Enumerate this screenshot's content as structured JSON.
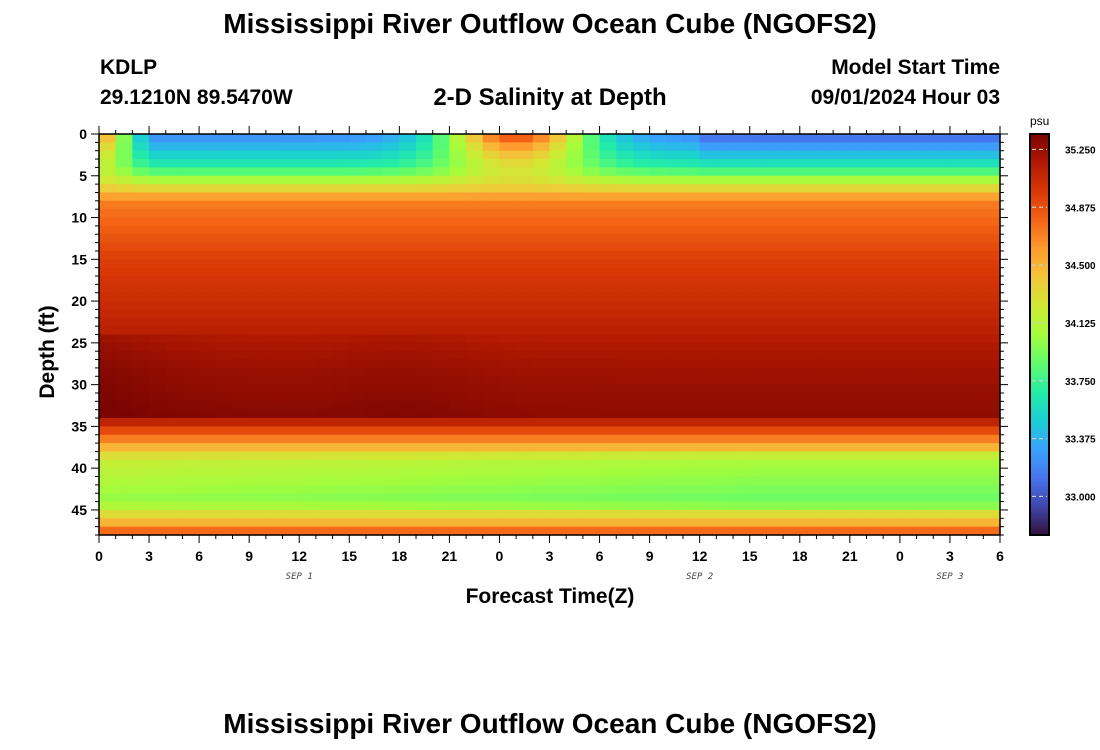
{
  "header": {
    "title": "Mississippi River Outflow Ocean Cube (NGOFS2)",
    "station": "KDLP",
    "coordinates": "29.1210N  89.5470W",
    "subtitle": "2-D Salinity at Depth",
    "start_label": "Model Start Time",
    "start_value": "09/01/2024 Hour 03"
  },
  "footer": {
    "title": "Mississippi River Outflow Ocean Cube (NGOFS2)"
  },
  "chart_data": {
    "type": "heatmap",
    "title": "2-D Salinity at Depth",
    "xlabel": "Forecast Time(Z)",
    "ylabel": "Depth (ft)",
    "x_range_hours": [
      0,
      54
    ],
    "y_range_ft": [
      0,
      48
    ],
    "x_tick_labels": [
      "0",
      "3",
      "6",
      "9",
      "12",
      "15",
      "18",
      "21",
      "0",
      "3",
      "6",
      "9",
      "12",
      "15",
      "18",
      "21",
      "0",
      "3",
      "6"
    ],
    "y_ticks": [
      "0",
      "5",
      "10",
      "15",
      "20",
      "25",
      "30",
      "35",
      "40",
      "45"
    ],
    "date_labels": [
      {
        "label": "SEP 1",
        "hour": 12
      },
      {
        "label": "SEP 2",
        "hour": 36
      },
      {
        "label": "SEP 3",
        "hour": 51
      }
    ],
    "colorbar": {
      "unit": "psu",
      "min": 32.75,
      "max": 35.35,
      "ticks": [
        "35.250",
        "34.875",
        "34.500",
        "34.125",
        "33.750",
        "33.375",
        "33.000"
      ],
      "colors": [
        "#30123b",
        "#4145ab",
        "#4675ed",
        "#39a2fc",
        "#1bcfd4",
        "#24eca6",
        "#61fc6c",
        "#a4fc3b",
        "#d1e834",
        "#f3c63a",
        "#fe9b2d",
        "#f36315",
        "#d93806",
        "#b11901",
        "#7a0402"
      ]
    },
    "salinity_profile": [
      {
        "depth_ft": 0,
        "psu": 33.2
      },
      {
        "depth_ft": 4,
        "psu": 33.7
      },
      {
        "depth_ft": 8,
        "psu": 34.7
      },
      {
        "depth_ft": 15,
        "psu": 34.95
      },
      {
        "depth_ft": 20,
        "psu": 35.05
      },
      {
        "depth_ft": 28,
        "psu": 35.22
      },
      {
        "depth_ft": 33.5,
        "psu": 35.28
      },
      {
        "depth_ft": 35,
        "psu": 35.0
      },
      {
        "depth_ft": 37,
        "psu": 34.6
      },
      {
        "depth_ft": 39,
        "psu": 34.2
      },
      {
        "depth_ft": 44,
        "psu": 34.0
      },
      {
        "depth_ft": 46.5,
        "psu": 34.5
      },
      {
        "depth_ft": 48,
        "psu": 34.9
      }
    ]
  }
}
